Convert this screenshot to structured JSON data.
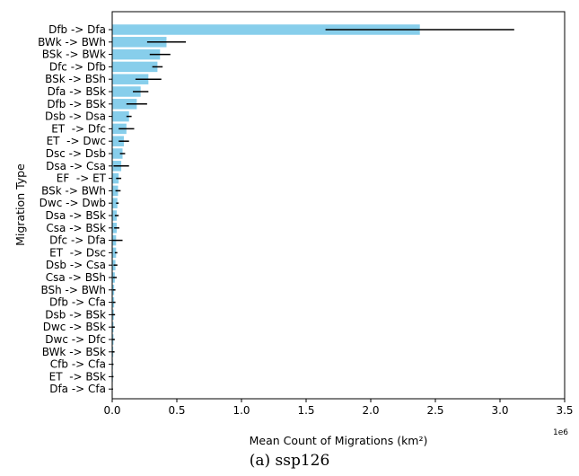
{
  "caption": "(a) ssp126",
  "chart_data": {
    "type": "bar",
    "orientation": "horizontal",
    "xlabel": "Mean Count of Migrations (km²)",
    "ylabel": "Migration Type",
    "x_offset_label": "1e6",
    "xlim": [
      0,
      3.5
    ],
    "xticks": [
      "0.0",
      "0.5",
      "1.0",
      "1.5",
      "2.0",
      "2.5",
      "3.0",
      "3.5"
    ],
    "bar_color": "#87ceeb",
    "error_color": "#000000",
    "categories": [
      "Dfb -> Dfa",
      "BWk -> BWh",
      "BSk -> BWk",
      "Dfc -> Dfb",
      "BSk -> BSh",
      "Dfa -> BSk",
      "Dfb -> BSk",
      "Dsb -> Dsa",
      "ET  -> Dfc",
      "ET  -> Dwc",
      "Dsc -> Dsb",
      "Dsa -> Csa",
      "EF  -> ET",
      "BSk -> BWh",
      "Dwc -> Dwb",
      "Dsa -> BSk",
      "Csa -> BSk",
      "Dfc -> Dfa",
      "ET  -> Dsc",
      "Dsb -> Csa",
      "Csa -> BSh",
      "BSh -> BWh",
      "Dfb -> Cfa",
      "Dsb -> BSk",
      "Dwc -> BSk",
      "Dwc -> Dfc",
      "BWk -> BSk",
      "Cfb -> Cfa",
      "ET  -> BSk",
      "Dfa -> Cfa"
    ],
    "values": [
      2.38,
      0.42,
      0.37,
      0.35,
      0.28,
      0.22,
      0.19,
      0.13,
      0.11,
      0.09,
      0.08,
      0.07,
      0.05,
      0.045,
      0.04,
      0.035,
      0.035,
      0.03,
      0.03,
      0.025,
      0.02,
      0.015,
      0.015,
      0.012,
      0.01,
      0.01,
      0.008,
      0.005,
      0.005,
      0.003
    ],
    "errors": [
      0.73,
      0.15,
      0.08,
      0.04,
      0.1,
      0.06,
      0.08,
      0.02,
      0.06,
      0.04,
      0.02,
      0.06,
      0.02,
      0.02,
      0.01,
      0.015,
      0.02,
      0.05,
      0.01,
      0.015,
      0.015,
      0.01,
      0.01,
      0.01,
      0.01,
      0.01,
      0.01,
      0.005,
      0.005,
      0.003
    ]
  }
}
